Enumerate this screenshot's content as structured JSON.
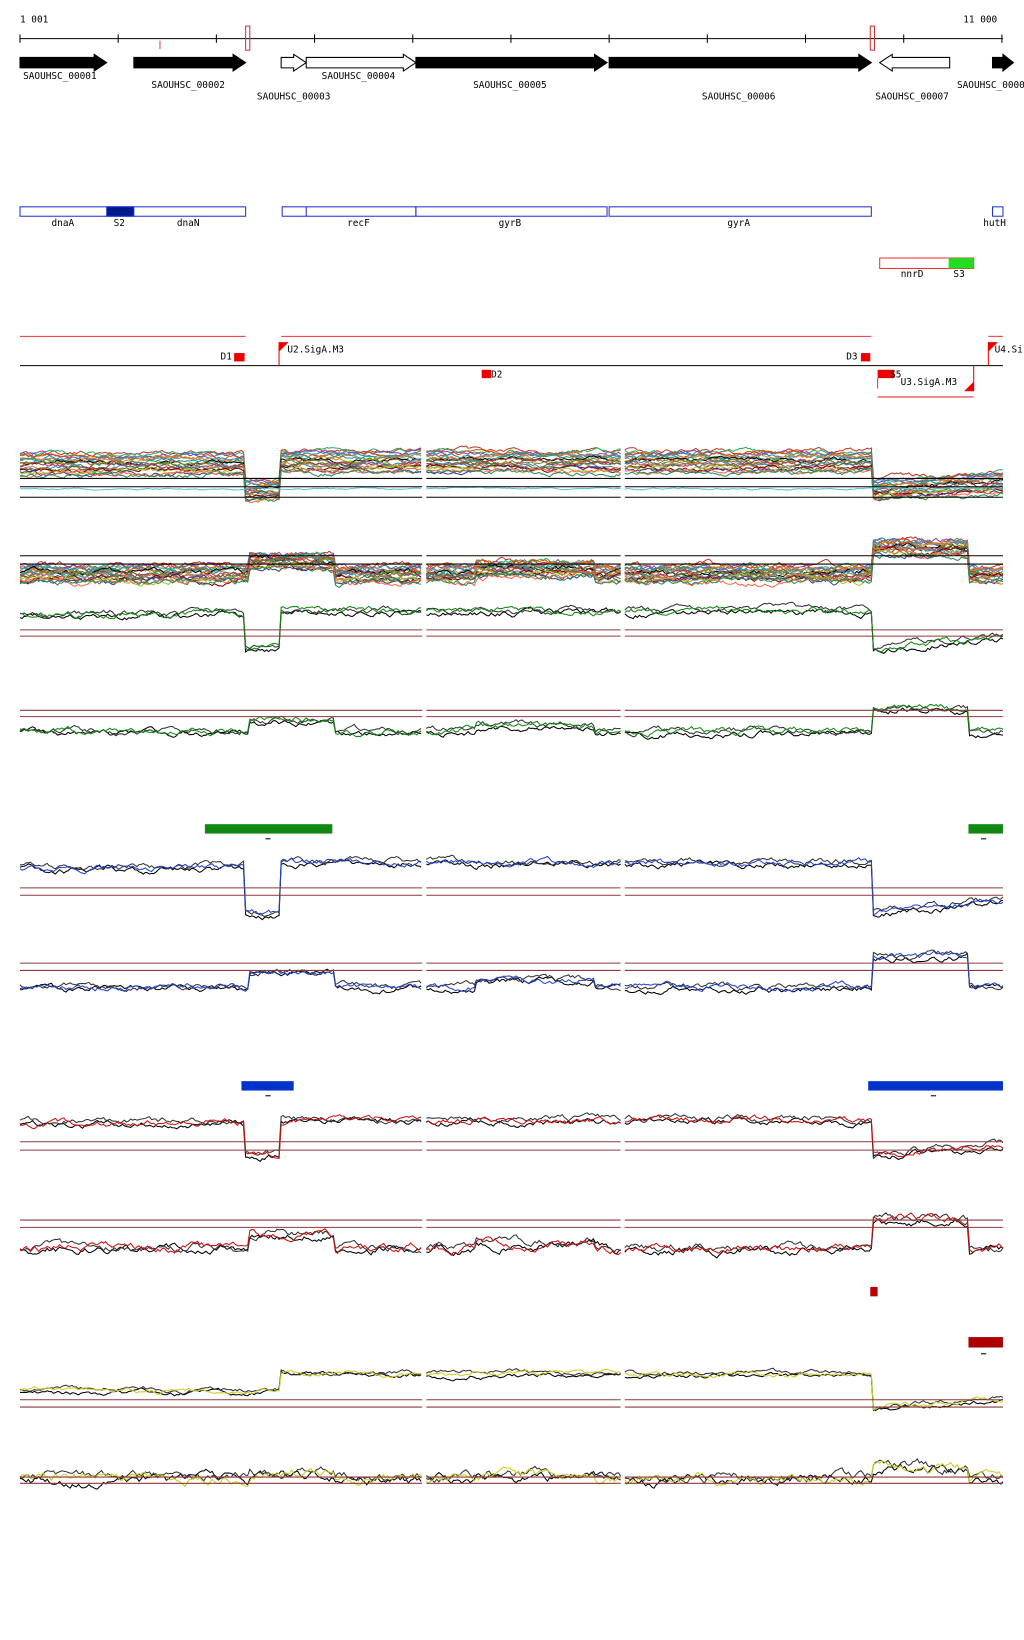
{
  "ruler": {
    "start": "1 001",
    "end": "11 000"
  },
  "genes": [
    "SAOUHSC_00001",
    "SAOUHSC_00002",
    "SAOUHSC_00003",
    "SAOUHSC_00004",
    "SAOUHSC_00005",
    "SAOUHSC_00006",
    "SAOUHSC_00007",
    "SAOUHSC_0000"
  ],
  "annotations": [
    "dnaA",
    "S2",
    "dnaN",
    "recF",
    "gyrB",
    "gyrA",
    "hutH",
    "nnrD",
    "S3"
  ],
  "sites": [
    "D1",
    "U2.SigA.M3",
    "D2",
    "D3",
    "S5",
    "U3.SigA.M3",
    "U4.Si"
  ]
}
